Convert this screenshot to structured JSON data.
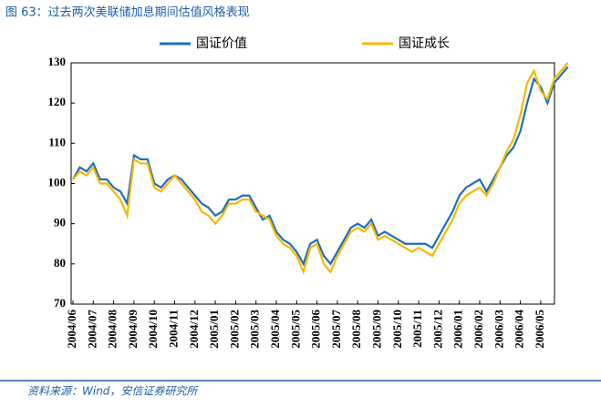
{
  "chart_data": {
    "type": "line",
    "title": "图 63：过去两次美联储加息期间估值风格表现",
    "source": "资料来源：Wind，安信证券研究所",
    "categories": [
      "2004/06",
      null,
      null,
      "2004/07",
      null,
      null,
      "2004/08",
      null,
      null,
      "2004/09",
      null,
      null,
      "2004/10",
      null,
      null,
      "2004/11",
      null,
      null,
      "2004/12",
      null,
      null,
      "2005/01",
      null,
      null,
      "2005/02",
      null,
      null,
      "2005/03",
      null,
      null,
      "2005/04",
      null,
      null,
      "2005/05",
      null,
      null,
      "2005/06",
      null,
      null,
      "2005/07",
      null,
      null,
      "2005/08",
      null,
      null,
      "2005/09",
      null,
      null,
      "2005/10",
      null,
      null,
      "2005/11",
      null,
      null,
      "2005/12",
      null,
      null,
      "2006/01",
      null,
      null,
      "2006/02",
      null,
      null,
      "2006/03",
      null,
      null,
      "2006/04",
      null,
      null,
      "2006/05",
      null,
      null,
      null,
      null
    ],
    "series": [
      {
        "name": "国证价值",
        "color": "#1f6fb8",
        "values": [
          101,
          104,
          103,
          105,
          101,
          101,
          99,
          98,
          95,
          107,
          106,
          106,
          100,
          99,
          101,
          102,
          101,
          99,
          97,
          95,
          94,
          92,
          93,
          96,
          96,
          97,
          97,
          94,
          91,
          92,
          88,
          86,
          85,
          83,
          80,
          85,
          86,
          82,
          80,
          83,
          86,
          89,
          90,
          89,
          91,
          87,
          88,
          87,
          86,
          85,
          85,
          85,
          85,
          84,
          87,
          90,
          93,
          97,
          99,
          100,
          101,
          98,
          101,
          104,
          107,
          109,
          113,
          120,
          126,
          124,
          120,
          125,
          127,
          129
        ]
      },
      {
        "name": "国证成长",
        "color": "#f5b800",
        "values": [
          101,
          103,
          102,
          104,
          100,
          100,
          98,
          96,
          92,
          106,
          105,
          105,
          99,
          98,
          100,
          102,
          100,
          98,
          96,
          93,
          92,
          90,
          92,
          95,
          95,
          96,
          96,
          93,
          92,
          91,
          87,
          85,
          84,
          82,
          78,
          84,
          85,
          80,
          78,
          82,
          85,
          88,
          89,
          88,
          90,
          86,
          87,
          86,
          85,
          84,
          83,
          84,
          83,
          82,
          85,
          88,
          91,
          95,
          97,
          98,
          99,
          97,
          100,
          104,
          108,
          111,
          117,
          125,
          128,
          123,
          121,
          126,
          128,
          130
        ]
      }
    ],
    "ylim": [
      70,
      130
    ],
    "yticks": [
      70,
      80,
      90,
      100,
      110,
      120,
      130
    ]
  }
}
